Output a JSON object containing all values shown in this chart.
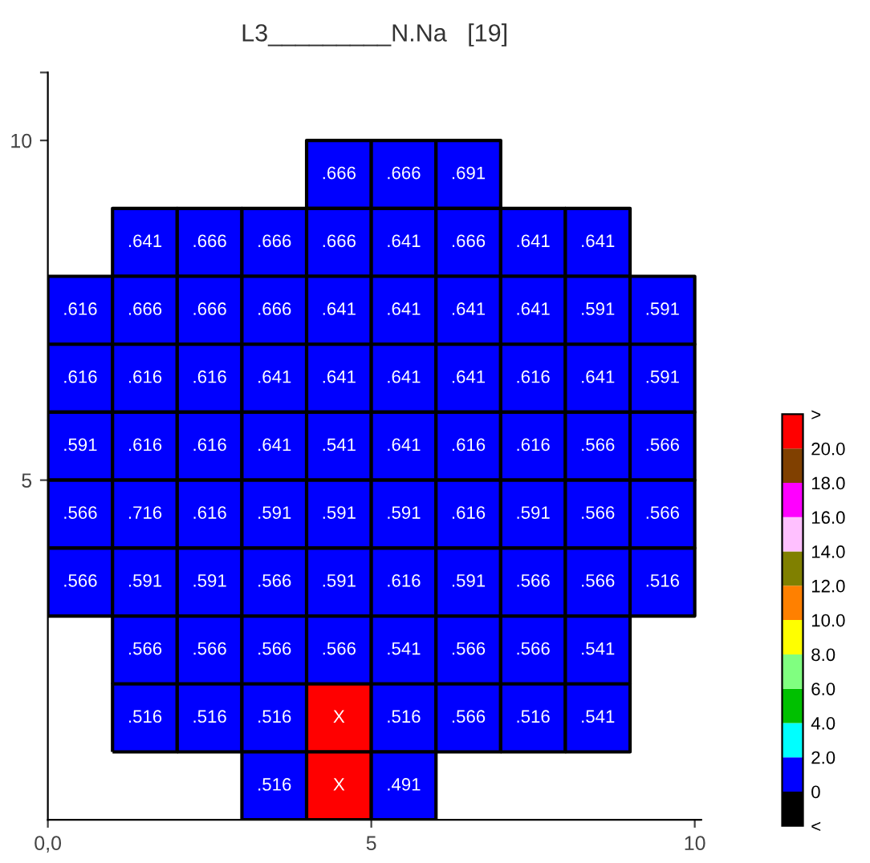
{
  "chart_data": {
    "type": "heatmap",
    "title": "L3_________N.Na   [19]",
    "x": [
      0.5,
      1.5,
      2.5,
      3.5,
      4.5,
      5.5,
      6.5,
      7.5,
      8.5,
      9.5
    ],
    "y": [
      9.5,
      8.5,
      7.5,
      6.5,
      5.5,
      4.5,
      3.5,
      2.5,
      1.5,
      0.5
    ],
    "cells": [
      [
        null,
        null,
        null,
        null,
        0.666,
        0.666,
        0.691,
        null,
        null,
        null
      ],
      [
        null,
        0.641,
        0.666,
        0.666,
        0.666,
        0.641,
        0.666,
        0.641,
        0.641,
        null
      ],
      [
        0.616,
        0.666,
        0.666,
        0.666,
        0.641,
        0.641,
        0.641,
        0.641,
        0.591,
        0.591
      ],
      [
        0.616,
        0.616,
        0.616,
        0.641,
        0.641,
        0.641,
        0.641,
        0.616,
        0.641,
        0.591
      ],
      [
        0.591,
        0.616,
        0.616,
        0.641,
        0.541,
        0.641,
        0.616,
        0.616,
        0.566,
        0.566
      ],
      [
        0.566,
        0.716,
        0.616,
        0.591,
        0.591,
        0.591,
        0.616,
        0.591,
        0.566,
        0.566
      ],
      [
        0.566,
        0.591,
        0.591,
        0.566,
        0.591,
        0.616,
        0.591,
        0.566,
        0.566,
        0.516
      ],
      [
        null,
        0.566,
        0.566,
        0.566,
        0.566,
        0.541,
        0.566,
        0.566,
        0.541,
        null
      ],
      [
        null,
        0.516,
        0.516,
        0.516,
        21,
        0.516,
        0.566,
        0.516,
        0.541,
        null
      ],
      [
        null,
        null,
        null,
        0.516,
        21,
        0.491,
        null,
        null,
        null,
        null
      ]
    ],
    "cell_labels": [
      [
        null,
        null,
        null,
        null,
        ".666",
        ".666",
        ".691",
        null,
        null,
        null
      ],
      [
        null,
        ".641",
        ".666",
        ".666",
        ".666",
        ".641",
        ".666",
        ".641",
        ".641",
        null
      ],
      [
        ".616",
        ".666",
        ".666",
        ".666",
        ".641",
        ".641",
        ".641",
        ".641",
        ".591",
        ".591"
      ],
      [
        ".616",
        ".616",
        ".616",
        ".641",
        ".641",
        ".641",
        ".641",
        ".616",
        ".641",
        ".591"
      ],
      [
        ".591",
        ".616",
        ".616",
        ".641",
        ".541",
        ".641",
        ".616",
        ".616",
        ".566",
        ".566"
      ],
      [
        ".566",
        ".716",
        ".616",
        ".591",
        ".591",
        ".591",
        ".616",
        ".591",
        ".566",
        ".566"
      ],
      [
        ".566",
        ".591",
        ".591",
        ".566",
        ".591",
        ".616",
        ".591",
        ".566",
        ".566",
        ".516"
      ],
      [
        null,
        ".566",
        ".566",
        ".566",
        ".566",
        ".541",
        ".566",
        ".566",
        ".541",
        null
      ],
      [
        null,
        ".516",
        ".516",
        ".516",
        "X",
        ".516",
        ".566",
        ".516",
        ".541",
        null
      ],
      [
        null,
        null,
        null,
        ".516",
        "X",
        ".491",
        null,
        null,
        null,
        null
      ]
    ],
    "colors": [
      "#000000",
      "#0000ff",
      "#00ffff",
      "#00c000",
      "#80ff80",
      "#ffff00",
      "#ff8000",
      "#808000",
      "#ffc0ff",
      "#ff00ff",
      "#804000",
      "#ff0000"
    ],
    "clim": [
      -2,
      22
    ],
    "cticks": [
      {
        "value": -2,
        "label": "<"
      },
      0,
      {
        "value": 2,
        "label": "2.0"
      },
      {
        "value": 4,
        "label": "4.0"
      },
      {
        "value": 6,
        "label": "6.0"
      },
      {
        "value": 8,
        "label": "8.0"
      },
      {
        "value": 10,
        "label": "10.0"
      },
      {
        "value": 12,
        "label": "12.0"
      },
      {
        "value": 14,
        "label": "14.0"
      },
      {
        "value": 16,
        "label": "16.0"
      },
      {
        "value": 18,
        "label": "18.0"
      },
      {
        "value": 20,
        "label": "20.0"
      },
      {
        "value": 22,
        "label": ">"
      }
    ],
    "xlim": [
      0,
      10.1
    ],
    "ylim": [
      0,
      11
    ],
    "xticks": [
      {
        "value": 0,
        "label": "0,0"
      },
      5,
      10
    ],
    "yticks": [
      5,
      10,
      {
        "value": 11,
        "label": null
      }
    ],
    "grid": false
  }
}
